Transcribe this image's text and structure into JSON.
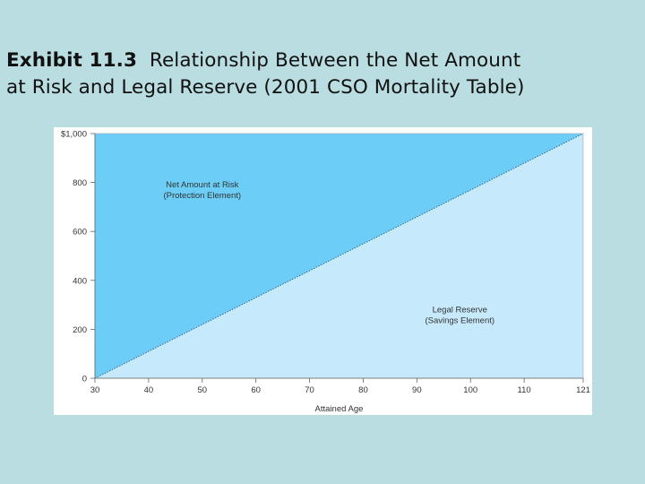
{
  "title": {
    "exhibit_label": "Exhibit 11.3",
    "text_line1": "Relationship Between the Net Amount",
    "text_line2": "at Risk and Legal Reserve (2001 CSO Mortality Table)"
  },
  "colors": {
    "background": "#b9dde0",
    "net_amount_fill": "#6ccef6",
    "reserve_fill": "#c6e9fb",
    "axis": "#666666"
  },
  "chart_data": {
    "type": "area",
    "title": "Exhibit 11.3 Relationship Between the Net Amount at Risk and Legal Reserve (2001 CSO Mortality Table)",
    "xlabel": "Attained Age",
    "ylabel": "",
    "xlim": [
      30,
      121
    ],
    "ylim": [
      0,
      1000
    ],
    "x_ticks": [
      30,
      40,
      50,
      60,
      70,
      80,
      90,
      100,
      110,
      121
    ],
    "y_ticks": [
      0,
      200,
      400,
      600,
      800,
      1000
    ],
    "y_tick_labels": [
      "0",
      "200",
      "400",
      "600",
      "800",
      "$1,000"
    ],
    "face_amount": 1000,
    "series": [
      {
        "name": "Legal Reserve (Savings Element)",
        "x": [
          30,
          121
        ],
        "values": [
          0,
          1000
        ]
      },
      {
        "name": "Net Amount at Risk (Protection Element)",
        "x": [
          30,
          121
        ],
        "values": [
          1000,
          0
        ]
      }
    ],
    "annotations": {
      "net_amount_line1": "Net Amount at Risk",
      "net_amount_line2": "(Protection Element)",
      "reserve_line1": "Legal Reserve",
      "reserve_line2": "(Savings Element)"
    }
  }
}
